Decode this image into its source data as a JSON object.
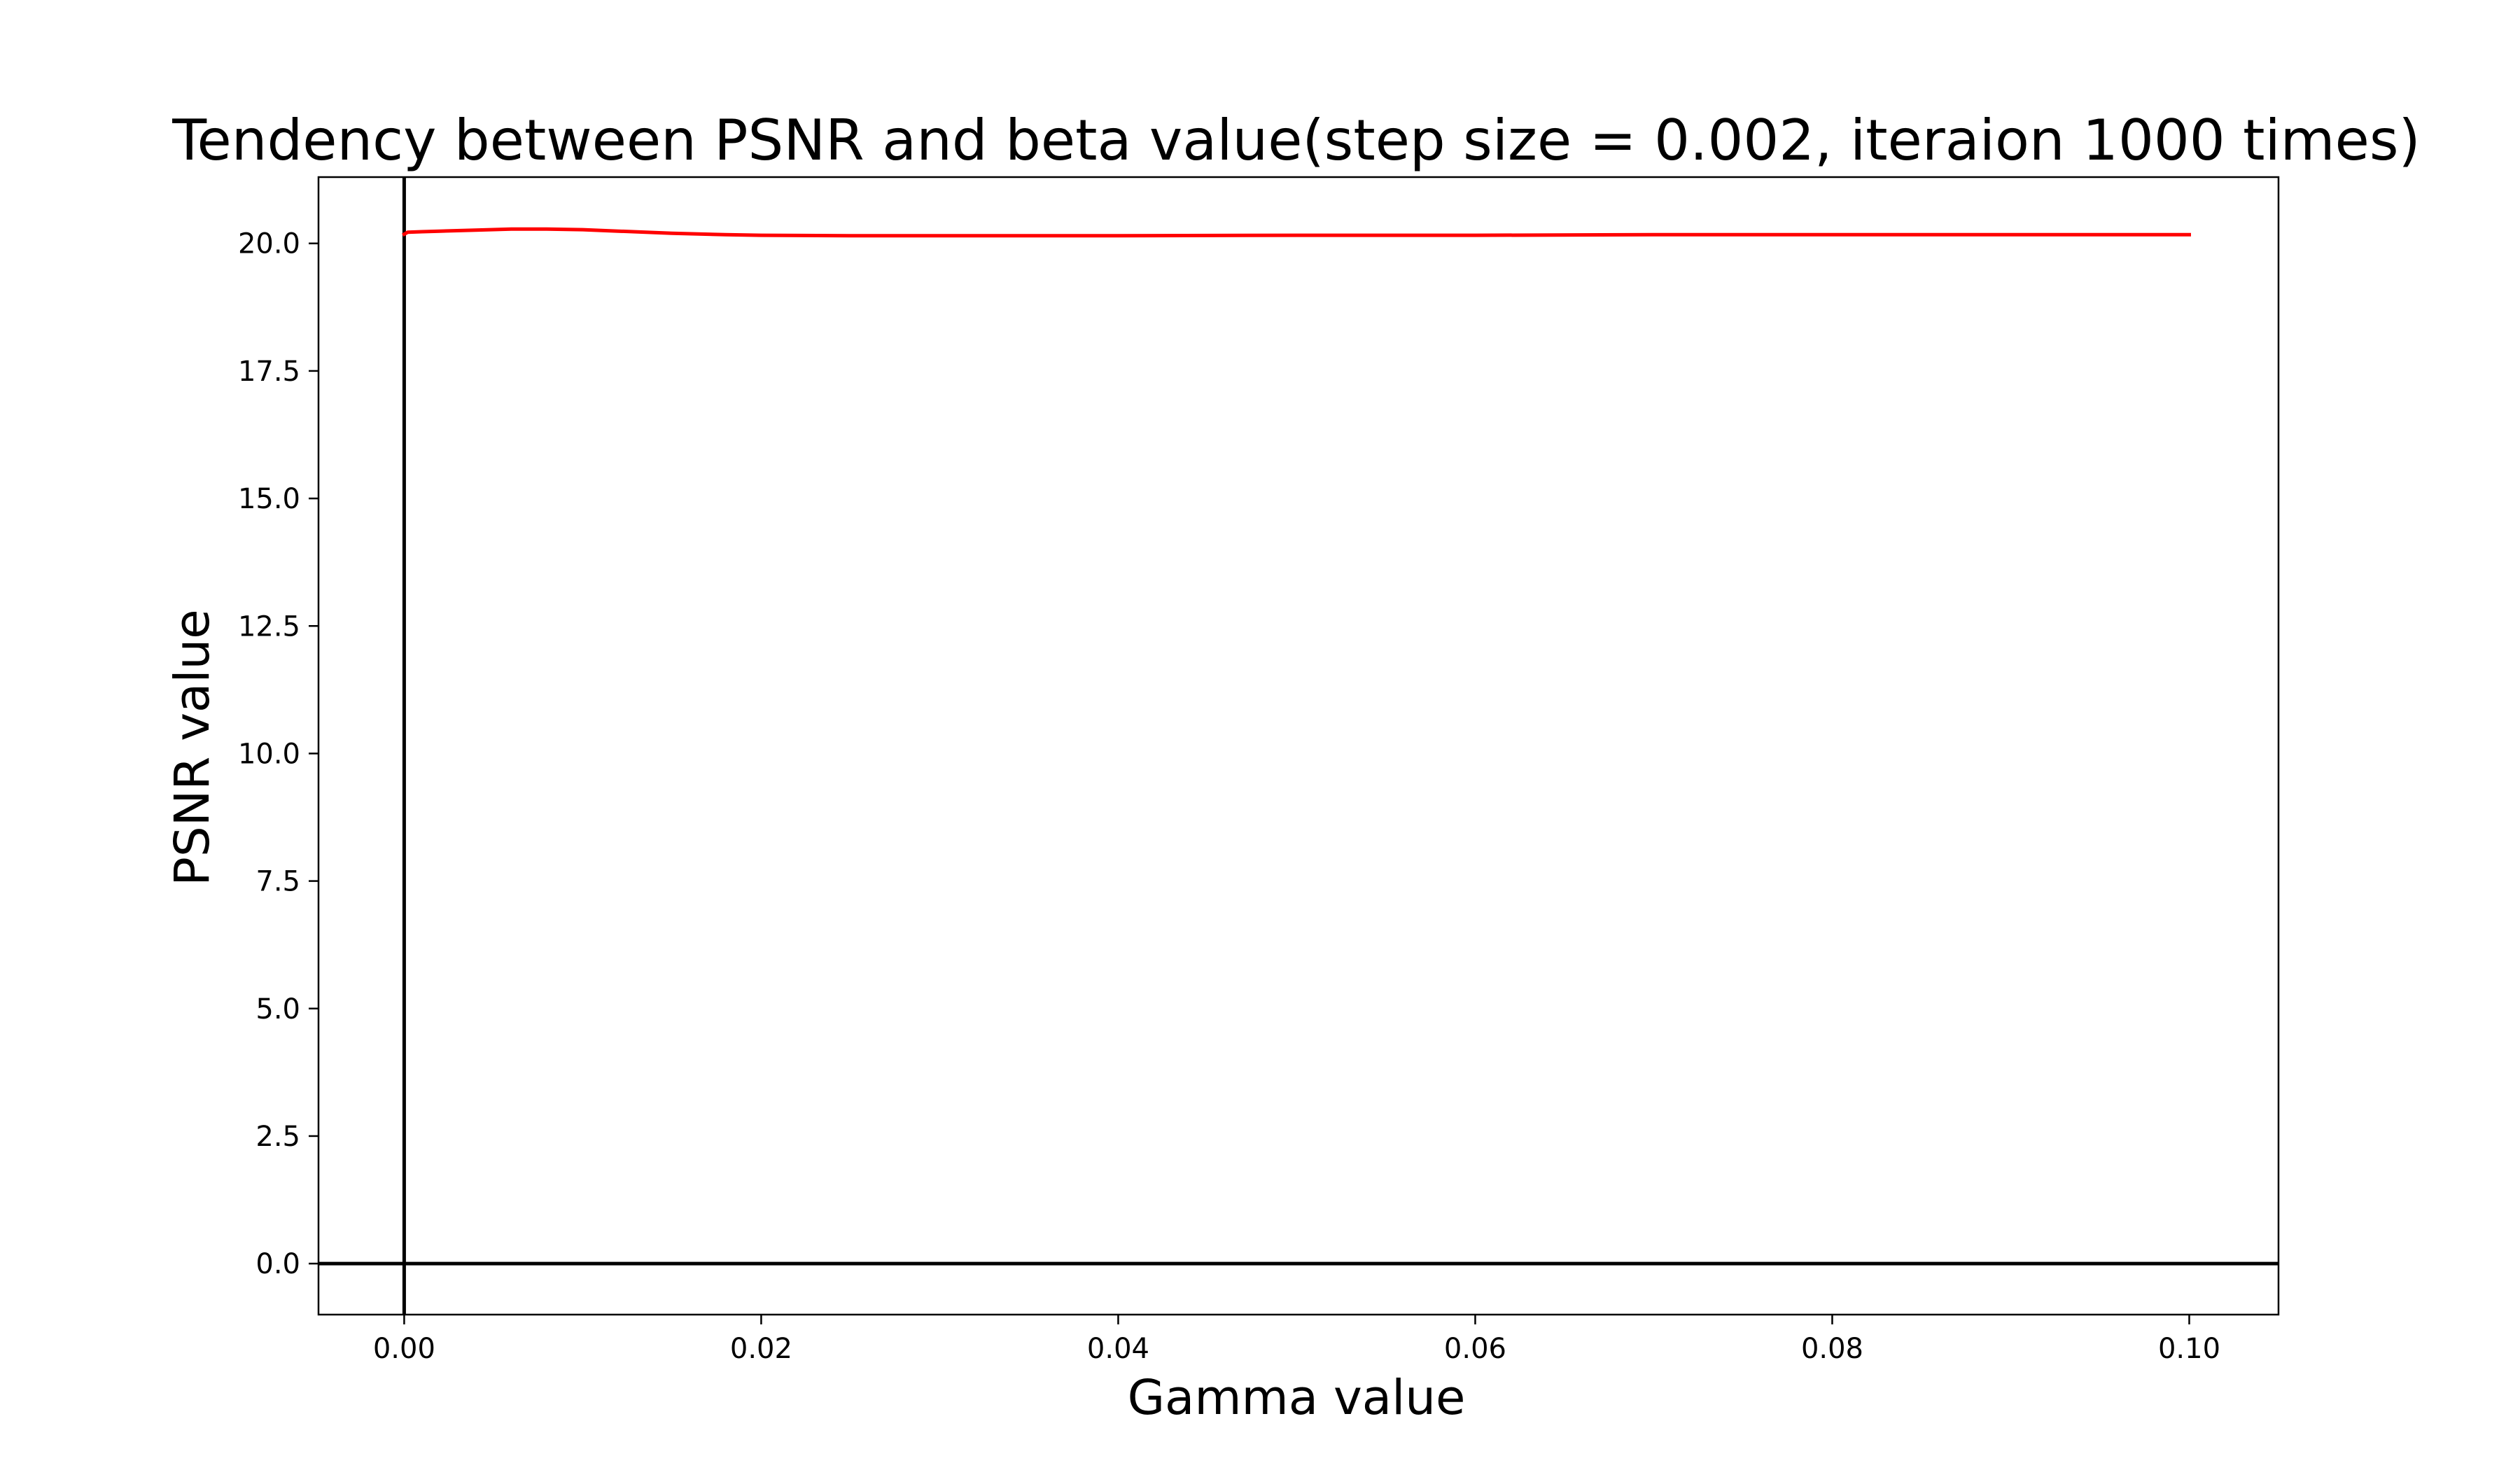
{
  "chart_data": {
    "type": "line",
    "title": "Tendency between PSNR and beta value(step size = 0.002, iteraion 1000 times)",
    "xlabel": "Gamma value",
    "ylabel": "PSNR value",
    "xlim": [
      -0.0048,
      0.105
    ],
    "ylim": [
      -1.0,
      21.3
    ],
    "xticks": [
      0.0,
      0.02,
      0.04,
      0.06,
      0.08,
      0.1
    ],
    "xtick_labels": [
      "0.00",
      "0.02",
      "0.04",
      "0.06",
      "0.08",
      "0.10"
    ],
    "yticks": [
      0.0,
      2.5,
      5.0,
      7.5,
      10.0,
      12.5,
      15.0,
      17.5,
      20.0
    ],
    "ytick_labels": [
      "0.0",
      "2.5",
      "5.0",
      "7.5",
      "10.0",
      "12.5",
      "15.0",
      "17.5",
      "20.0"
    ],
    "grid": false,
    "reference_lines": {
      "x": 0.0,
      "y": 0.0,
      "color": "#000000"
    },
    "series": [
      {
        "color": "#ff0000",
        "x": [
          0.0,
          0.0002,
          0.001,
          0.002,
          0.004,
          0.006,
          0.008,
          0.01,
          0.012,
          0.015,
          0.018,
          0.02,
          0.025,
          0.03,
          0.04,
          0.05,
          0.06,
          0.07,
          0.08,
          0.09,
          0.1
        ],
        "y": [
          20.18,
          20.22,
          20.23,
          20.24,
          20.26,
          20.28,
          20.28,
          20.27,
          20.24,
          20.2,
          20.17,
          20.16,
          20.15,
          20.15,
          20.15,
          20.16,
          20.16,
          20.17,
          20.17,
          20.17,
          20.17
        ]
      }
    ]
  }
}
